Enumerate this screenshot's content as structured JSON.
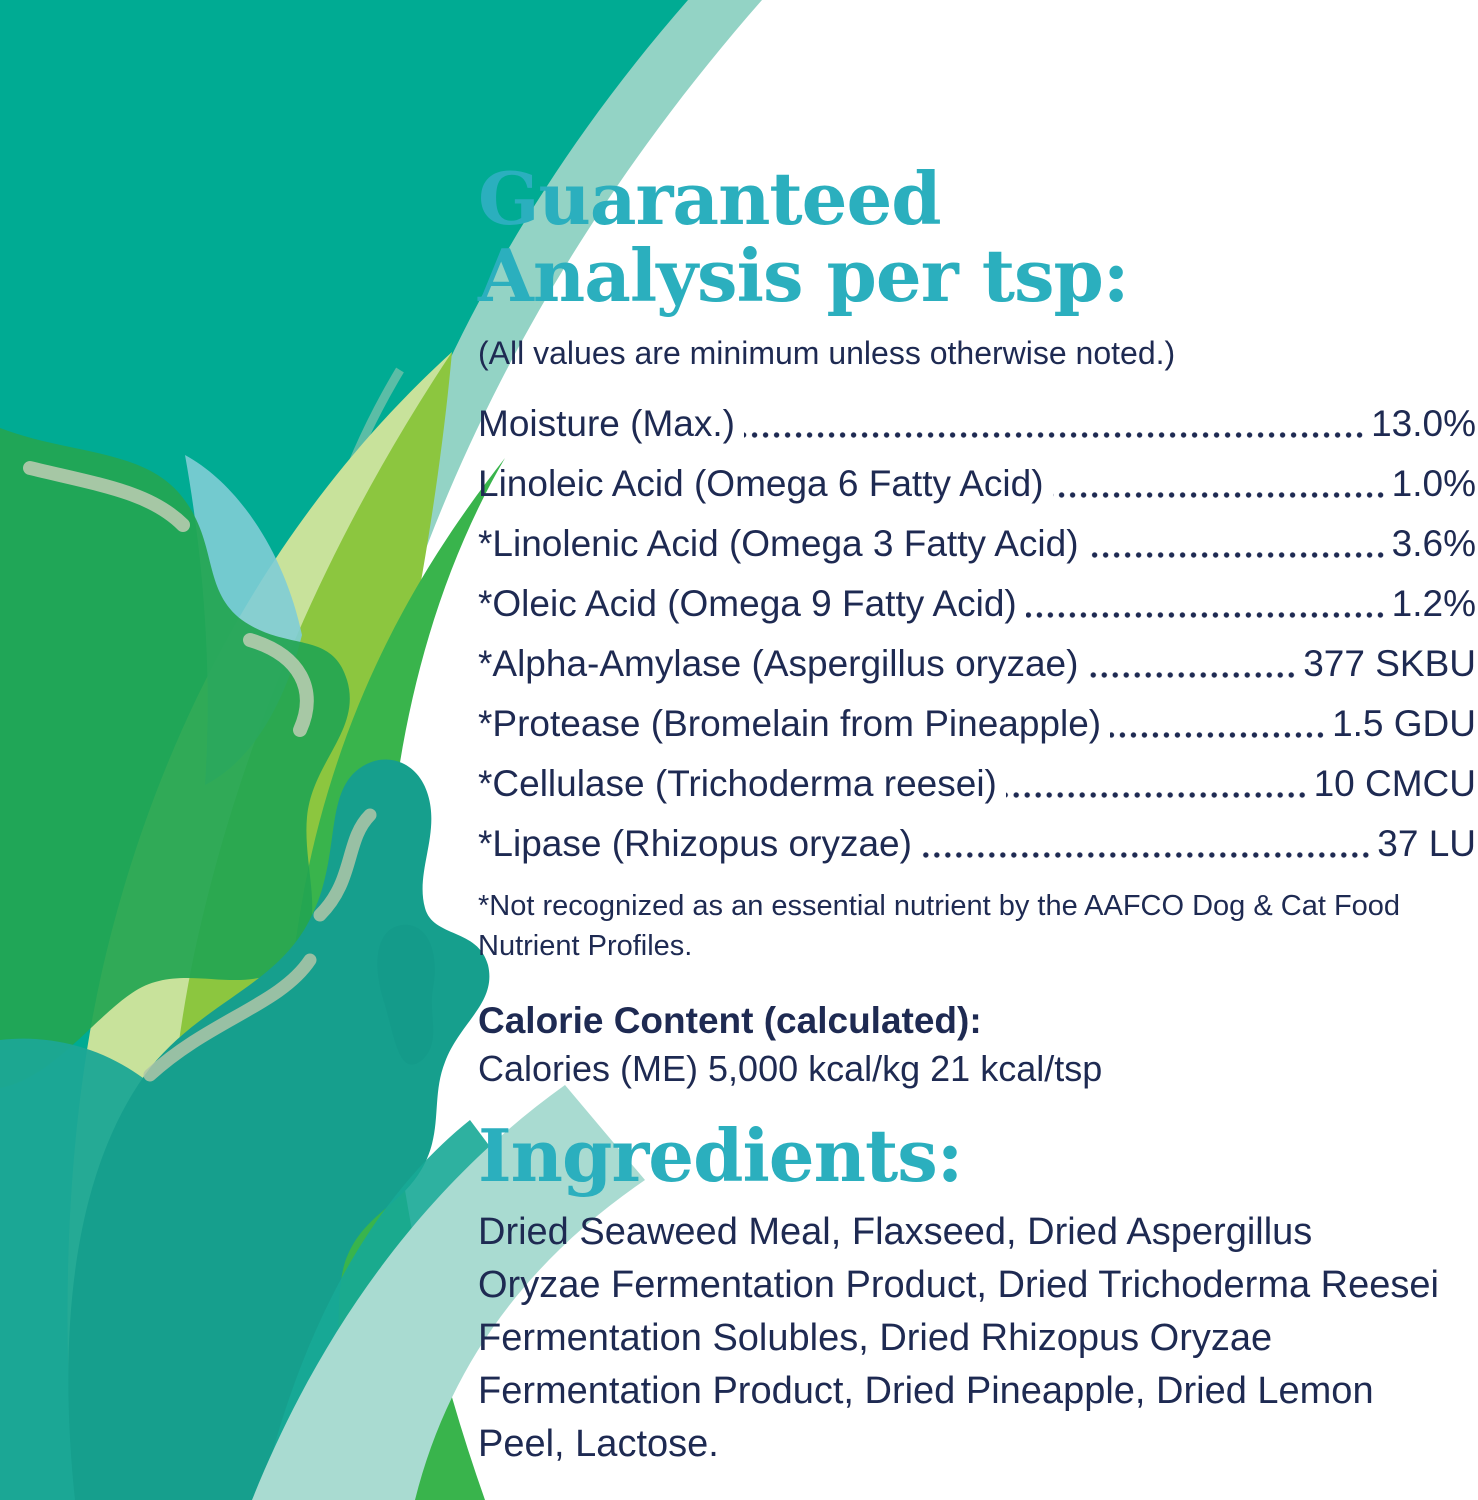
{
  "colors": {
    "accent_teal": "#2BAFBE",
    "text_navy": "#1E2A52",
    "background_teal": "#00AB93",
    "mint_band": "#93D3C5",
    "mint_ribbon": "#A9DBD1",
    "kelp_dark_teal": "#169F8D",
    "kelp_green": "#23A551",
    "blade_bright_green": "#39B44C",
    "blade_yellow_green": "#8CC63F",
    "blade_pale_green": "#C8E29B",
    "highlight_sage": "#B5CBAE",
    "accent_light_blue": "#7FCDD6"
  },
  "analysis": {
    "title_line1": "Guaranteed",
    "title_line2": "Analysis per tsp:",
    "subtitle": "(All values are minimum unless otherwise noted.)",
    "rows": [
      {
        "label": "Moisture (Max.)",
        "value": "13.0%"
      },
      {
        "label": "Linoleic Acid (Omega 6 Fatty Acid)",
        "value": "1.0%"
      },
      {
        "label": "*Linolenic Acid (Omega 3 Fatty Acid)",
        "value": "3.6%"
      },
      {
        "label": "*Oleic Acid (Omega 9 Fatty Acid)",
        "value": "1.2%"
      },
      {
        "label": "*Alpha-Amylase (Aspergillus oryzae)",
        "value": "377 SKBU"
      },
      {
        "label": "*Protease (Bromelain from Pineapple)",
        "value": "1.5 GDU"
      },
      {
        "label": "*Cellulase (Trichoderma reesei)",
        "value": "10 CMCU"
      },
      {
        "label": "*Lipase (Rhizopus oryzae)",
        "value": "37 LU"
      }
    ],
    "footnote": "*Not recognized as an essential nutrient by the AAFCO Dog & Cat Food Nutrient Profiles."
  },
  "calories": {
    "heading": "Calorie Content (calculated):",
    "text": "Calories (ME) 5,000 kcal/kg 21 kcal/tsp"
  },
  "ingredients": {
    "title": "Ingredients:",
    "text": "Dried Seaweed Meal, Flaxseed, Dried Aspergillus Oryzae Fermentation Product, Dried Trichoderma Reesei Fermentation Solubles, Dried Rhizopus Oryzae Fermentation Product, Dried Pineapple, Dried Lemon Peel, Lactose."
  }
}
